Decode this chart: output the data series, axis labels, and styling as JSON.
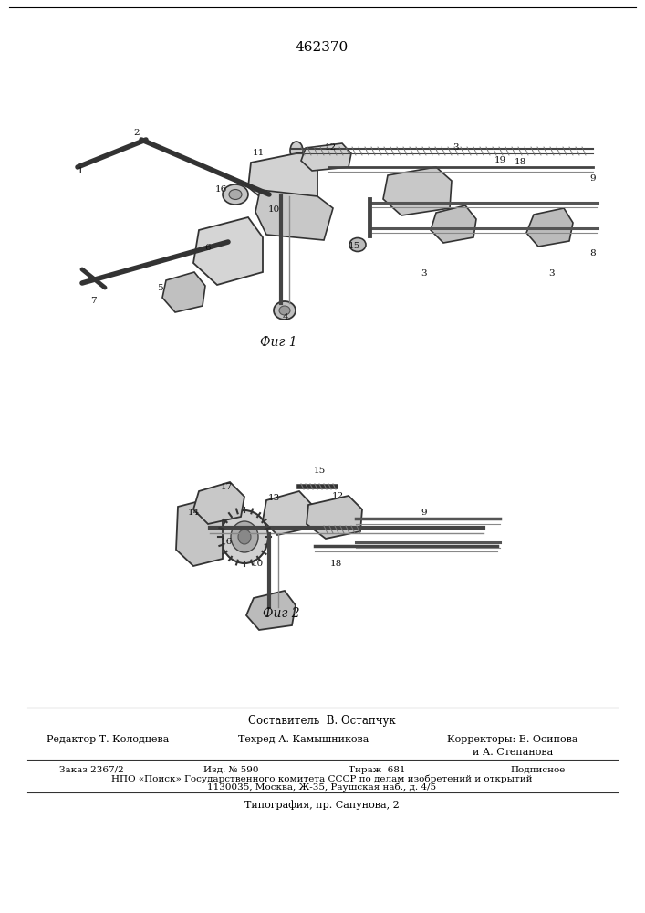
{
  "patent_number": "462370",
  "fig1_caption": "Фиг 1",
  "fig2_caption": "Фиг 2",
  "composer_label": "Составитель",
  "composer_name": "В. Остапчук",
  "editor_label": "Редактор",
  "editor_name": "Т. Колодцева",
  "techred_label": "Техред",
  "techred_name": "А. Камышникова",
  "correctors_label": "Корректоры:",
  "corrector1": "Е. Осипова",
  "corrector2": "и А. Степанова",
  "order_label": "Заказ 2367/2",
  "izd_label": "Изд. № 590",
  "tirazh_label": "Тираж  681",
  "podpisnoe_label": "Подписное",
  "npo_line": "НПО «Поиск» Государственного комитета СССР по делам изобретений и открытий",
  "address_line": "1130035, Москва, Ж-35, Раушская наб., д. 4/5",
  "typography_line": "Типография, пр. Сапунова, 2",
  "bg_color": "#ffffff",
  "text_color": "#000000",
  "border_color": "#000000",
  "fig_width": 7.07,
  "fig_height": 10.0
}
